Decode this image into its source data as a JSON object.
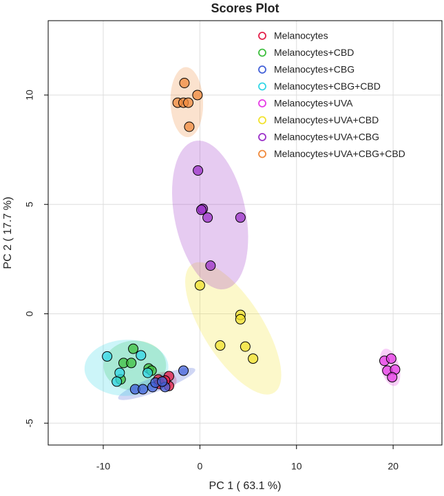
{
  "chart_data": {
    "type": "scatter",
    "title": "Scores Plot",
    "x_label": "PC 1 ( 63.1 %)",
    "y_label": "PC 2 ( 17.7 %)",
    "xlim": [
      -15.7,
      25.05
    ],
    "ylim": [
      -6.0,
      13.4
    ],
    "xticks": [
      -10,
      0,
      10,
      20
    ],
    "yticks": [
      -5,
      0,
      5,
      10
    ],
    "grid": true,
    "legend": "top-right",
    "series": [
      {
        "name": "Melanocytes",
        "color": "#e3204a",
        "x": [
          -4.3,
          -3.2,
          -4.2,
          -3.2,
          -3.6
        ],
        "values": [
          -3.0,
          -2.85,
          -3.2,
          -3.3,
          -3.05
        ]
      },
      {
        "name": "Melanocytes+CBD",
        "color": "#3fbf3f",
        "x": [
          -6.9,
          -7.9,
          -7.1,
          -5.3,
          -5.0,
          -8.2
        ],
        "values": [
          -1.6,
          -2.25,
          -2.25,
          -2.5,
          -2.6,
          -3.0
        ]
      },
      {
        "name": "Melanocytes+CBG",
        "color": "#4361d8",
        "x": [
          -6.7,
          -5.9,
          -4.9,
          -4.6,
          -3.6,
          -1.7,
          -3.9
        ],
        "values": [
          -3.45,
          -3.45,
          -3.35,
          -3.15,
          -3.35,
          -2.6,
          -3.1
        ]
      },
      {
        "name": "Melanocytes+CBG+CBD",
        "color": "#33d6e6",
        "x": [
          -9.6,
          -6.1,
          -8.3,
          -8.6,
          -5.4
        ],
        "values": [
          -1.95,
          -1.9,
          -2.7,
          -3.1,
          -2.7
        ]
      },
      {
        "name": "Melanocytes+UVA",
        "color": "#e63ce6",
        "x": [
          19.1,
          19.8,
          19.4,
          20.2,
          19.9
        ],
        "values": [
          -2.15,
          -2.05,
          -2.6,
          -2.55,
          -2.9
        ]
      },
      {
        "name": "Melanocytes+UVA+CBD",
        "color": "#f2e22c",
        "x": [
          0.0,
          4.2,
          4.2,
          2.1,
          4.7,
          5.5
        ],
        "values": [
          1.3,
          -0.05,
          -0.25,
          -1.45,
          -1.5,
          -2.05
        ]
      },
      {
        "name": "Melanocytes+UVA+CBG",
        "color": "#9b30c8",
        "x": [
          -0.2,
          0.3,
          0.15,
          0.8,
          4.2,
          1.1
        ],
        "values": [
          6.55,
          4.8,
          4.75,
          4.4,
          4.4,
          2.2
        ]
      },
      {
        "name": "Melanocytes+UVA+CBG+CBD",
        "color": "#f08a3c",
        "x": [
          -1.6,
          -0.25,
          -2.3,
          -1.7,
          -1.2,
          -1.1
        ],
        "values": [
          10.55,
          10.0,
          9.65,
          9.65,
          9.65,
          8.55
        ]
      }
    ]
  }
}
